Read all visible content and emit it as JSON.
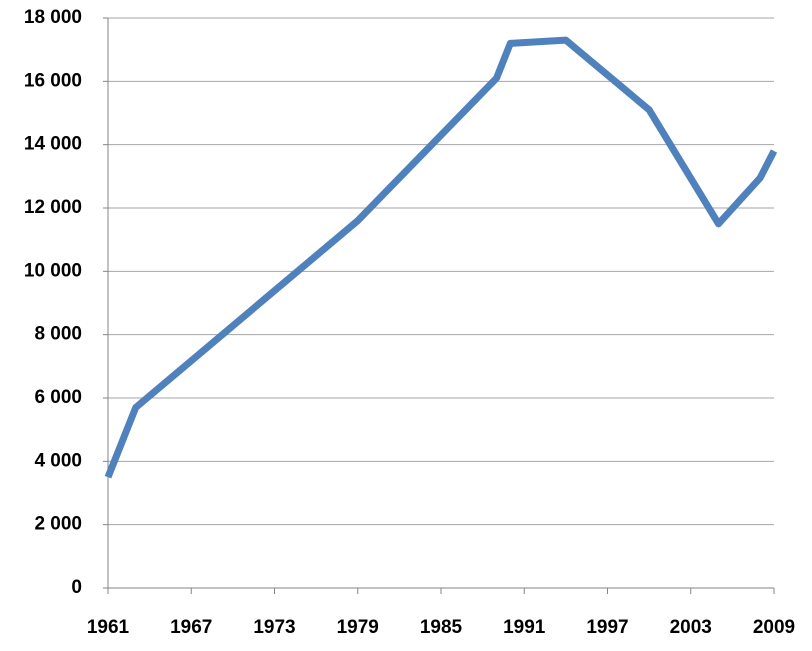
{
  "chart_data": {
    "type": "line",
    "x": [
      1961,
      1963,
      1979,
      1989,
      1990,
      1994,
      2000,
      2005,
      2008,
      2009
    ],
    "series": [
      {
        "color": "#4f81bd",
        "values": [
          3500,
          5700,
          11600,
          16100,
          17200,
          17300,
          15100,
          11500,
          12950,
          13800
        ]
      }
    ],
    "xlim": [
      1961,
      2009
    ],
    "xticks": [
      1961,
      1967,
      1973,
      1979,
      1985,
      1991,
      1997,
      2003,
      2009
    ],
    "ylim": [
      0,
      18000
    ],
    "yticks": [
      0,
      {
        "value": 2000,
        "label": "2 000"
      },
      {
        "value": 4000,
        "label": "4 000"
      },
      {
        "value": 6000,
        "label": "6 000"
      },
      {
        "value": 8000,
        "label": "8 000"
      },
      {
        "value": 10000,
        "label": "10 000"
      },
      {
        "value": 12000,
        "label": "12 000"
      },
      {
        "value": 14000,
        "label": "14 000"
      },
      {
        "value": 16000,
        "label": "16 000"
      },
      {
        "value": 18000,
        "label": "18 000"
      }
    ],
    "grid": true
  }
}
